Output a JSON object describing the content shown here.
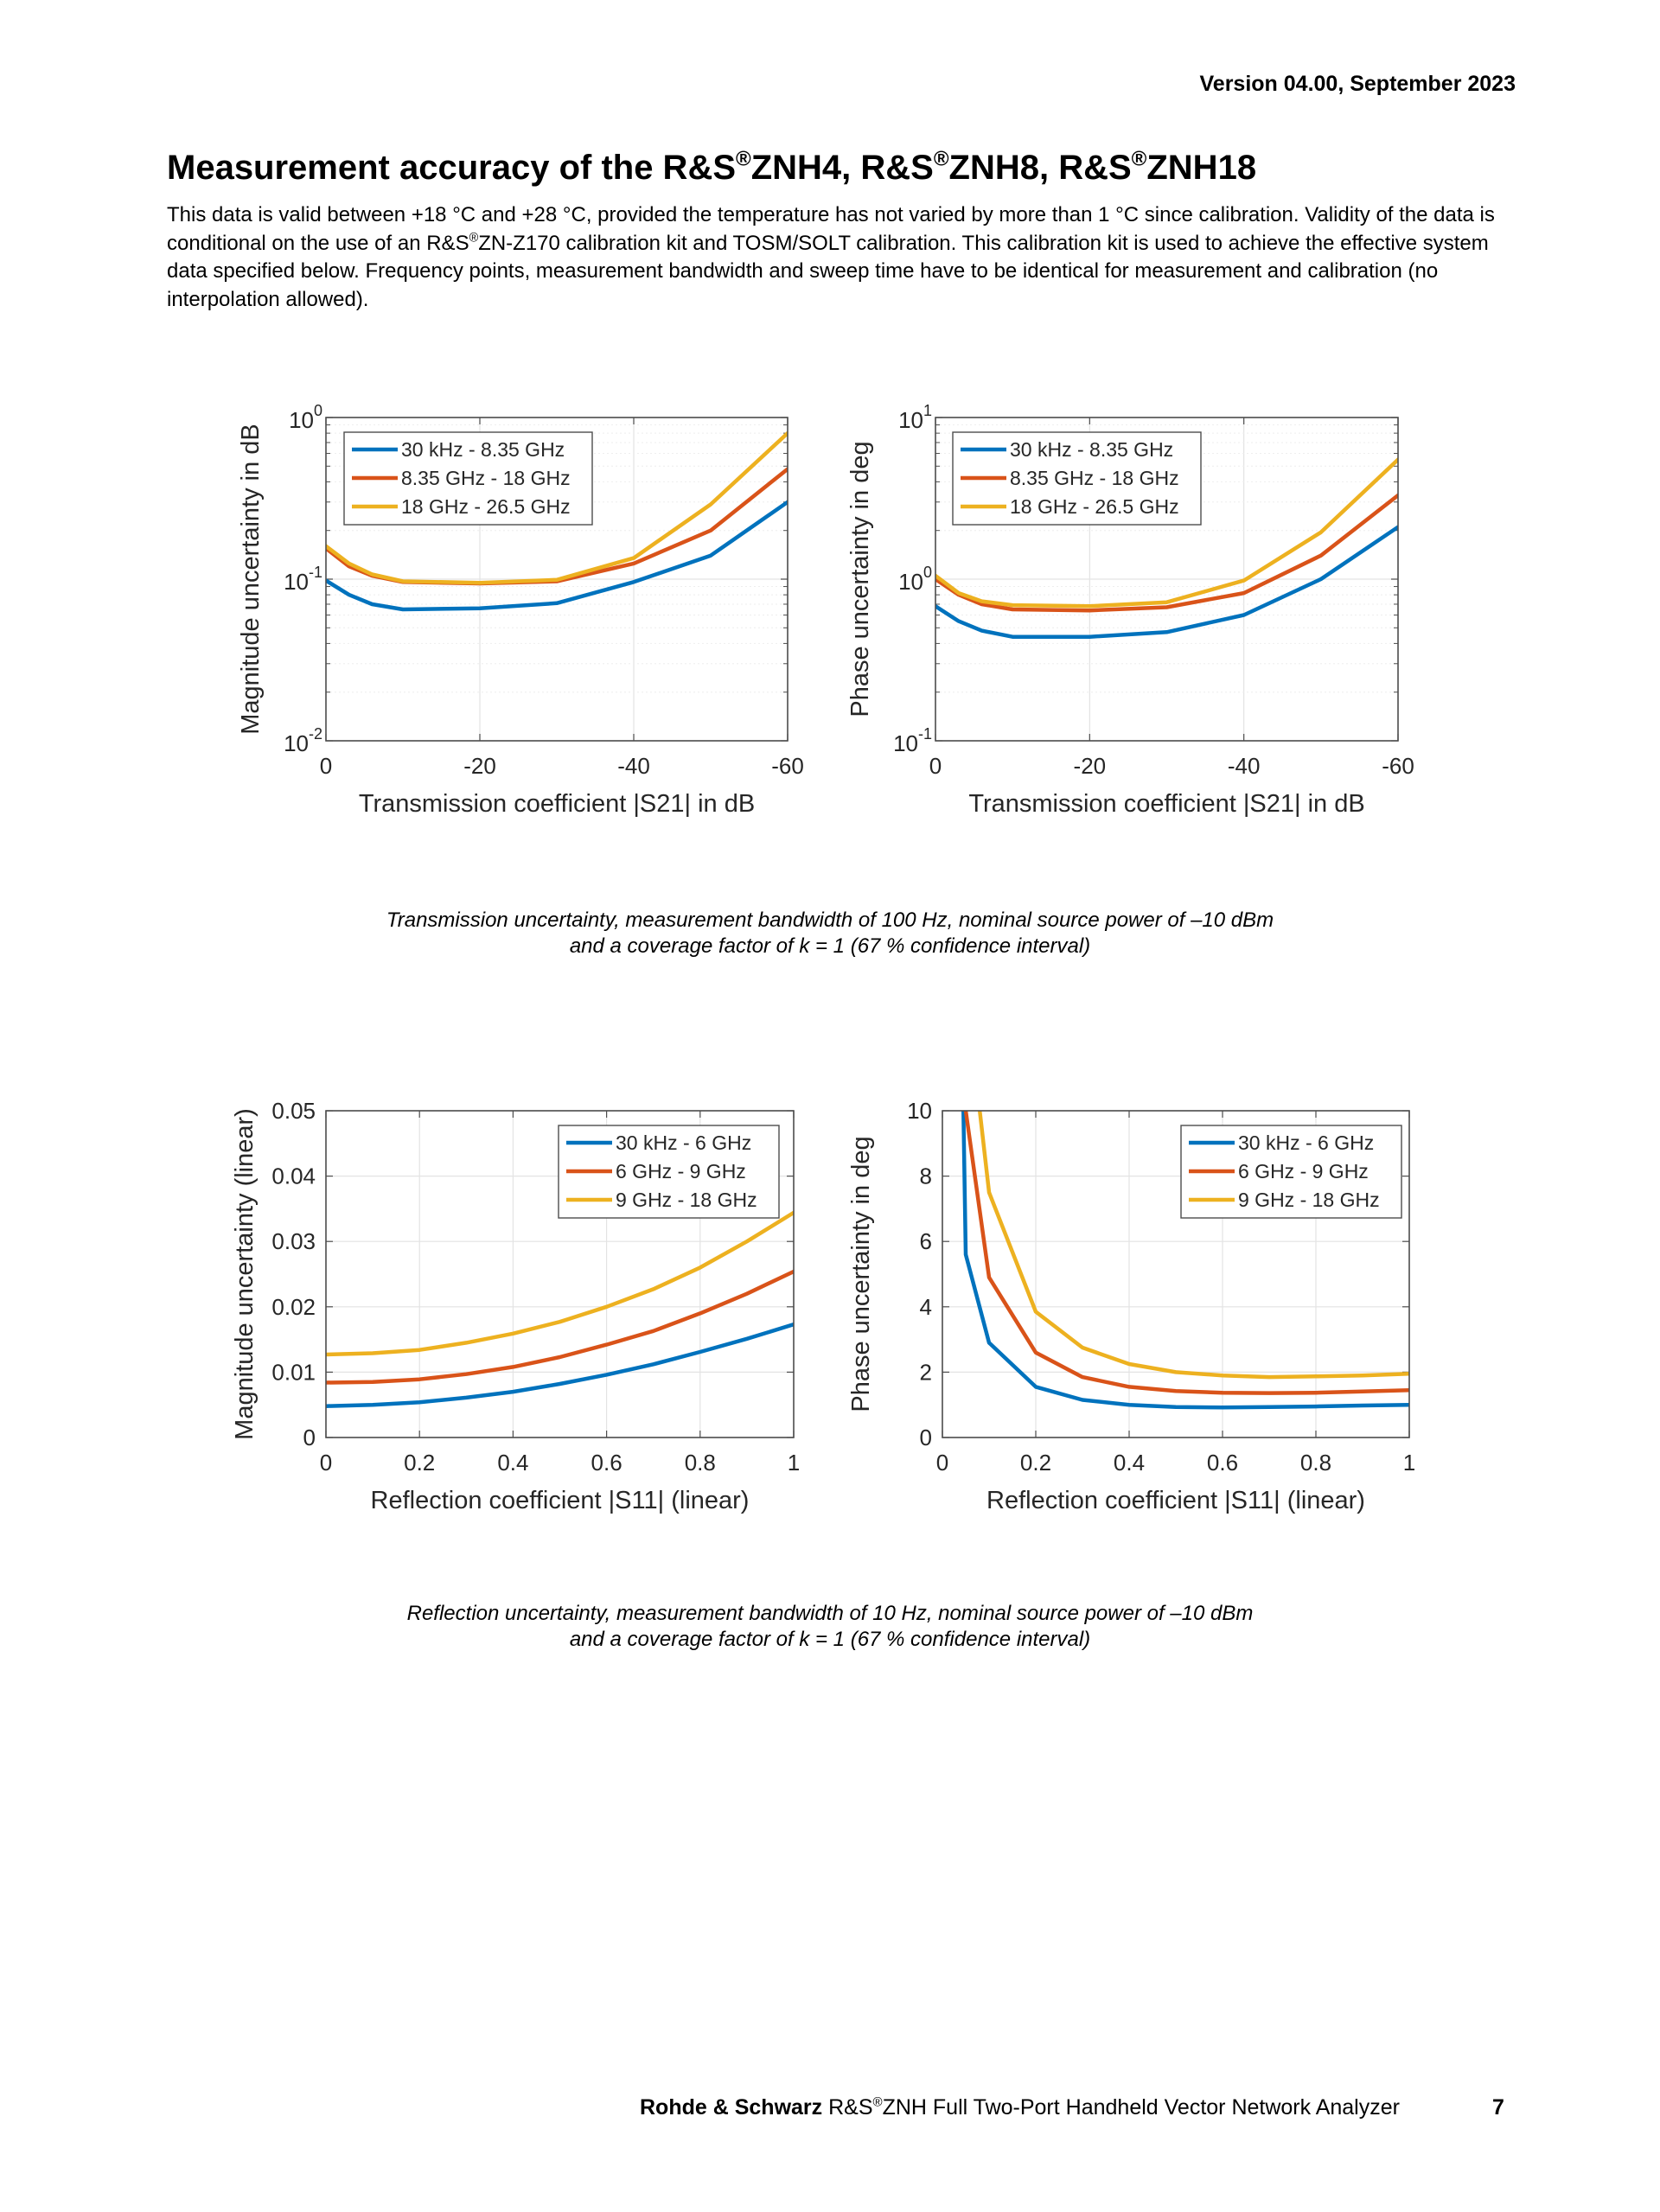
{
  "header": {
    "version": "Version 04.00, September 2023"
  },
  "title": {
    "parts": [
      "Measurement accuracy of the R&S",
      "ZNH4, R&S",
      "ZNH8, R&S",
      "ZNH18"
    ],
    "reg_mark": "®"
  },
  "intro": {
    "part1": "This data is valid between +18 °C and +28 °C, provided the temperature has not varied by more than 1 °C since calibration. Validity of the data is conditional on the use of an R&S",
    "reg_mark": "®",
    "part2": "ZN-Z170 calibration kit and TOSM/SOLT calibration. This calibration kit is used to achieve the effective system data specified below. Frequency points, measurement bandwidth and sweep time have to be identical for measurement and calibration (no interpolation allowed)."
  },
  "captions": {
    "transmission": {
      "line1": "Transmission uncertainty, measurement bandwidth of 100 Hz, nominal source power of –10 dBm",
      "line2": "and a coverage factor of k = 1 (67 % confidence interval)"
    },
    "reflection": {
      "line1": "Reflection uncertainty, measurement bandwidth of 10 Hz, nominal source power of –10 dBm",
      "line2": "and a coverage factor of k = 1 (67 % confidence interval)"
    }
  },
  "footer": {
    "brand": "Rohde & Schwarz",
    "product_prefix": " R&S",
    "reg_mark": "®",
    "product": "ZNH Full Two-Port Handheld Vector Network Analyzer",
    "page_number": "7"
  },
  "colors": {
    "blue": "#0072BD",
    "orange": "#D95319",
    "yellow": "#EDB120"
  },
  "chart_data": [
    {
      "id": "trans-mag",
      "type": "line",
      "title": "",
      "xlabel": "Transmission coefficient |S21| in dB",
      "ylabel": "Magnitude uncertainty in dB",
      "xlim": [
        0,
        -60
      ],
      "ylim": [
        0.01,
        1
      ],
      "yscale": "log",
      "xticks": [
        0,
        -20,
        -40,
        -60
      ],
      "xtick_labels": [
        "0",
        "-20",
        "-40",
        "-60"
      ],
      "yticks": [
        0.01,
        0.1,
        1
      ],
      "ytick_labels": [
        [
          "10",
          "-2"
        ],
        [
          "10",
          "-1"
        ],
        [
          "10",
          "0"
        ]
      ],
      "grid": true,
      "legend": "top-left",
      "x": [
        0,
        -3,
        -6,
        -10,
        -20,
        -30,
        -40,
        -50,
        -60
      ],
      "series": [
        {
          "name": "30 kHz - 8.35 GHz",
          "color": "#0072BD",
          "values": [
            0.098,
            0.08,
            0.07,
            0.065,
            0.066,
            0.071,
            0.096,
            0.14,
            0.3
          ]
        },
        {
          "name": "8.35 GHz - 18 GHz",
          "color": "#D95319",
          "values": [
            0.155,
            0.12,
            0.105,
            0.096,
            0.094,
            0.097,
            0.125,
            0.2,
            0.48
          ]
        },
        {
          "name": "18 GHz - 26.5 GHz",
          "color": "#EDB120",
          "values": [
            0.16,
            0.125,
            0.107,
            0.097,
            0.095,
            0.099,
            0.135,
            0.29,
            0.8
          ]
        }
      ]
    },
    {
      "id": "trans-phase",
      "type": "line",
      "title": "",
      "xlabel": "Transmission coefficient |S21| in dB",
      "ylabel": "Phase uncertainty in deg",
      "xlim": [
        0,
        -60
      ],
      "ylim": [
        0.1,
        10
      ],
      "yscale": "log",
      "xticks": [
        0,
        -20,
        -40,
        -60
      ],
      "xtick_labels": [
        "0",
        "-20",
        "-40",
        "-60"
      ],
      "yticks": [
        0.1,
        1,
        10
      ],
      "ytick_labels": [
        [
          "10",
          "-1"
        ],
        [
          "10",
          "0"
        ],
        [
          "10",
          "1"
        ]
      ],
      "grid": true,
      "legend": "top-left",
      "x": [
        0,
        -3,
        -6,
        -10,
        -20,
        -30,
        -40,
        -50,
        -60
      ],
      "series": [
        {
          "name": "30 kHz - 8.35 GHz",
          "color": "#0072BD",
          "values": [
            0.68,
            0.55,
            0.48,
            0.44,
            0.44,
            0.47,
            0.6,
            1.0,
            2.1
          ]
        },
        {
          "name": "8.35 GHz - 18 GHz",
          "color": "#D95319",
          "values": [
            1.0,
            0.8,
            0.7,
            0.65,
            0.64,
            0.67,
            0.82,
            1.4,
            3.3
          ]
        },
        {
          "name": "18 GHz - 26.5 GHz",
          "color": "#EDB120",
          "values": [
            1.05,
            0.82,
            0.73,
            0.69,
            0.68,
            0.72,
            0.98,
            1.95,
            5.5
          ]
        }
      ]
    },
    {
      "id": "refl-mag",
      "type": "line",
      "title": "",
      "xlabel": "Reflection coefficient |S11| (linear)",
      "ylabel": "Magnitude uncertainty (linear)",
      "xlim": [
        0,
        1
      ],
      "ylim": [
        0,
        0.05
      ],
      "yscale": "linear",
      "xticks": [
        0,
        0.2,
        0.4,
        0.6,
        0.8,
        1
      ],
      "xtick_labels": [
        "0",
        "0.2",
        "0.4",
        "0.6",
        "0.8",
        "1"
      ],
      "yticks": [
        0,
        0.01,
        0.02,
        0.03,
        0.04,
        0.05
      ],
      "ytick_labels": [
        "0",
        "0.01",
        "0.02",
        "0.03",
        "0.04",
        "0.05"
      ],
      "grid": true,
      "legend": "top-right",
      "x": [
        0,
        0.1,
        0.2,
        0.3,
        0.4,
        0.5,
        0.6,
        0.7,
        0.8,
        0.9,
        1.0
      ],
      "series": [
        {
          "name": "30 kHz - 6 GHz",
          "color": "#0072BD",
          "values": [
            0.0048,
            0.005,
            0.0054,
            0.0061,
            0.007,
            0.0082,
            0.0096,
            0.0112,
            0.0131,
            0.0151,
            0.0173
          ]
        },
        {
          "name": "6 GHz - 9 GHz",
          "color": "#D95319",
          "values": [
            0.0084,
            0.0085,
            0.0089,
            0.0097,
            0.0108,
            0.0123,
            0.0142,
            0.0163,
            0.019,
            0.022,
            0.0254
          ]
        },
        {
          "name": "9 GHz - 18 GHz",
          "color": "#EDB120",
          "values": [
            0.0127,
            0.0129,
            0.0134,
            0.0145,
            0.0159,
            0.0177,
            0.02,
            0.0227,
            0.026,
            0.03,
            0.0344
          ]
        }
      ]
    },
    {
      "id": "refl-phase",
      "type": "line",
      "title": "",
      "xlabel": "Reflection coefficient |S11| (linear)",
      "ylabel": "Phase uncertainty in deg",
      "xlim": [
        0,
        1
      ],
      "ylim": [
        0,
        10
      ],
      "yscale": "linear",
      "xticks": [
        0,
        0.2,
        0.4,
        0.6,
        0.8,
        1
      ],
      "xtick_labels": [
        "0",
        "0.2",
        "0.4",
        "0.6",
        "0.8",
        "1"
      ],
      "yticks": [
        0,
        2,
        4,
        6,
        8,
        10
      ],
      "ytick_labels": [
        "0",
        "2",
        "4",
        "6",
        "8",
        "10"
      ],
      "grid": true,
      "legend": "top-right",
      "series": [
        {
          "name": "30 kHz - 6 GHz",
          "color": "#0072BD",
          "x": [
            0.045,
            0.05,
            0.1,
            0.2,
            0.3,
            0.4,
            0.5,
            0.6,
            0.7,
            0.8,
            0.9,
            1.0
          ],
          "values": [
            10,
            5.6,
            2.9,
            1.55,
            1.15,
            1.0,
            0.93,
            0.92,
            0.93,
            0.95,
            0.98,
            1.0
          ]
        },
        {
          "name": "6 GHz - 9 GHz",
          "color": "#D95319",
          "x": [
            0.05,
            0.1,
            0.2,
            0.3,
            0.4,
            0.5,
            0.6,
            0.7,
            0.8,
            0.9,
            1.0
          ],
          "values": [
            10,
            4.9,
            2.6,
            1.85,
            1.55,
            1.42,
            1.37,
            1.36,
            1.37,
            1.41,
            1.45
          ]
        },
        {
          "name": "9 GHz - 18 GHz",
          "color": "#EDB120",
          "x": [
            0.08,
            0.1,
            0.2,
            0.3,
            0.4,
            0.5,
            0.6,
            0.7,
            0.8,
            0.9,
            1.0
          ],
          "values": [
            10,
            7.5,
            3.85,
            2.75,
            2.25,
            2.0,
            1.9,
            1.85,
            1.87,
            1.9,
            1.95
          ]
        }
      ]
    }
  ]
}
